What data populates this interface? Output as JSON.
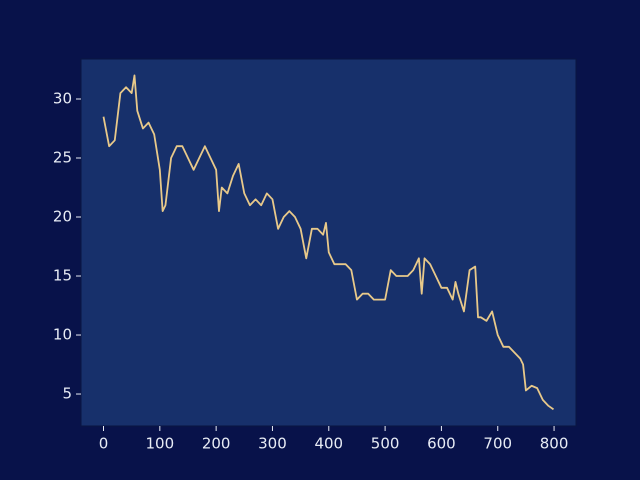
{
  "chart_data": {
    "type": "line",
    "x": [
      0,
      10,
      20,
      30,
      40,
      50,
      55,
      60,
      70,
      80,
      90,
      100,
      105,
      110,
      120,
      130,
      140,
      150,
      160,
      170,
      180,
      190,
      200,
      205,
      210,
      220,
      230,
      240,
      250,
      260,
      270,
      280,
      290,
      300,
      310,
      320,
      330,
      340,
      350,
      360,
      370,
      380,
      390,
      395,
      400,
      410,
      420,
      430,
      440,
      450,
      460,
      470,
      480,
      490,
      500,
      510,
      520,
      530,
      540,
      550,
      560,
      565,
      570,
      580,
      590,
      600,
      610,
      620,
      625,
      630,
      640,
      650,
      660,
      665,
      670,
      680,
      690,
      700,
      710,
      720,
      730,
      740,
      745,
      750,
      760,
      770,
      780,
      790,
      799
    ],
    "values": [
      28.5,
      26,
      26.5,
      30.5,
      31,
      30.5,
      32,
      29,
      27.5,
      28,
      27,
      24,
      20.5,
      21,
      25,
      26,
      26,
      25,
      24,
      25,
      26,
      25,
      24,
      20.5,
      22.5,
      22,
      23.5,
      24.5,
      22,
      21,
      21.5,
      21,
      22,
      21.5,
      19,
      20,
      20.5,
      20,
      19,
      16.5,
      19,
      19,
      18.5,
      19.5,
      17,
      16,
      16,
      16,
      15.5,
      13,
      13.5,
      13.5,
      13,
      13,
      13,
      15.5,
      15,
      15,
      15,
      15.5,
      16.5,
      13.5,
      16.5,
      16,
      15,
      14,
      14,
      13,
      14.5,
      13.5,
      12,
      15.5,
      15.8,
      11.5,
      11.5,
      11.2,
      12,
      10,
      9,
      9,
      8.5,
      8,
      7.5,
      5.3,
      5.7,
      5.5,
      4.5,
      4.0,
      3.7
    ],
    "color": "#e8c98a",
    "xlim": [
      -39.95,
      838.95
    ],
    "ylim": [
      2.29,
      33.39
    ],
    "xticks": [
      0,
      100,
      200,
      300,
      400,
      500,
      600,
      700,
      800
    ],
    "yticks": [
      5,
      10,
      15,
      20,
      25,
      30
    ]
  }
}
